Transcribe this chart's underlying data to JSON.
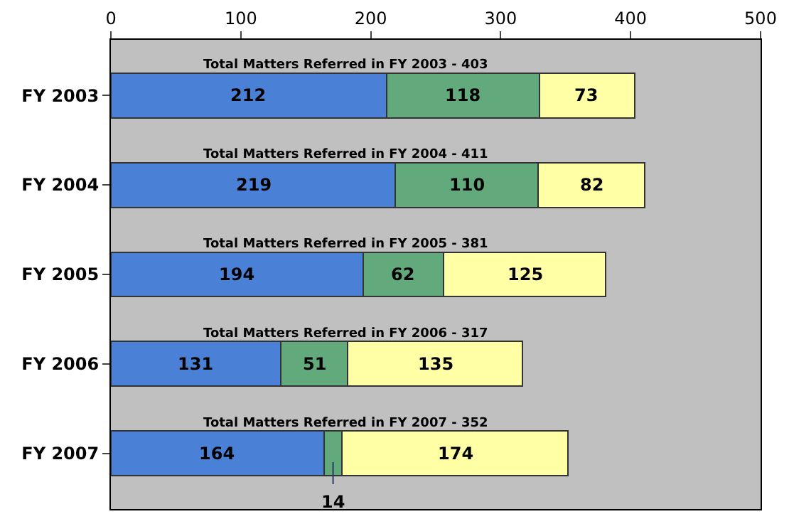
{
  "chart_data": {
    "type": "bar",
    "orientation": "horizontal",
    "stacked": true,
    "data_labels": true,
    "grid": false,
    "legend": false,
    "categories": [
      "FY 2003",
      "FY 2004",
      "FY 2005",
      "FY 2006",
      "FY 2007"
    ],
    "series": [
      {
        "color": "#4a80d6",
        "values": [
          212,
          219,
          194,
          131,
          164
        ]
      },
      {
        "color": "#62a97c",
        "values": [
          118,
          110,
          62,
          51,
          14
        ]
      },
      {
        "color": "#ffffa6",
        "values": [
          73,
          82,
          125,
          135,
          174
        ]
      }
    ],
    "xlim": [
      0,
      500
    ],
    "xticks": [
      0,
      100,
      200,
      300,
      400,
      500
    ],
    "annotations": [
      "Total Matters Referred in FY 2003 - 403",
      "Total Matters Referred in FY 2004 - 411",
      "Total Matters Referred in FY 2005 - 381",
      "Total Matters Referred in FY 2006 - 317",
      "Total Matters Referred in FY 2007 - 352"
    ]
  }
}
